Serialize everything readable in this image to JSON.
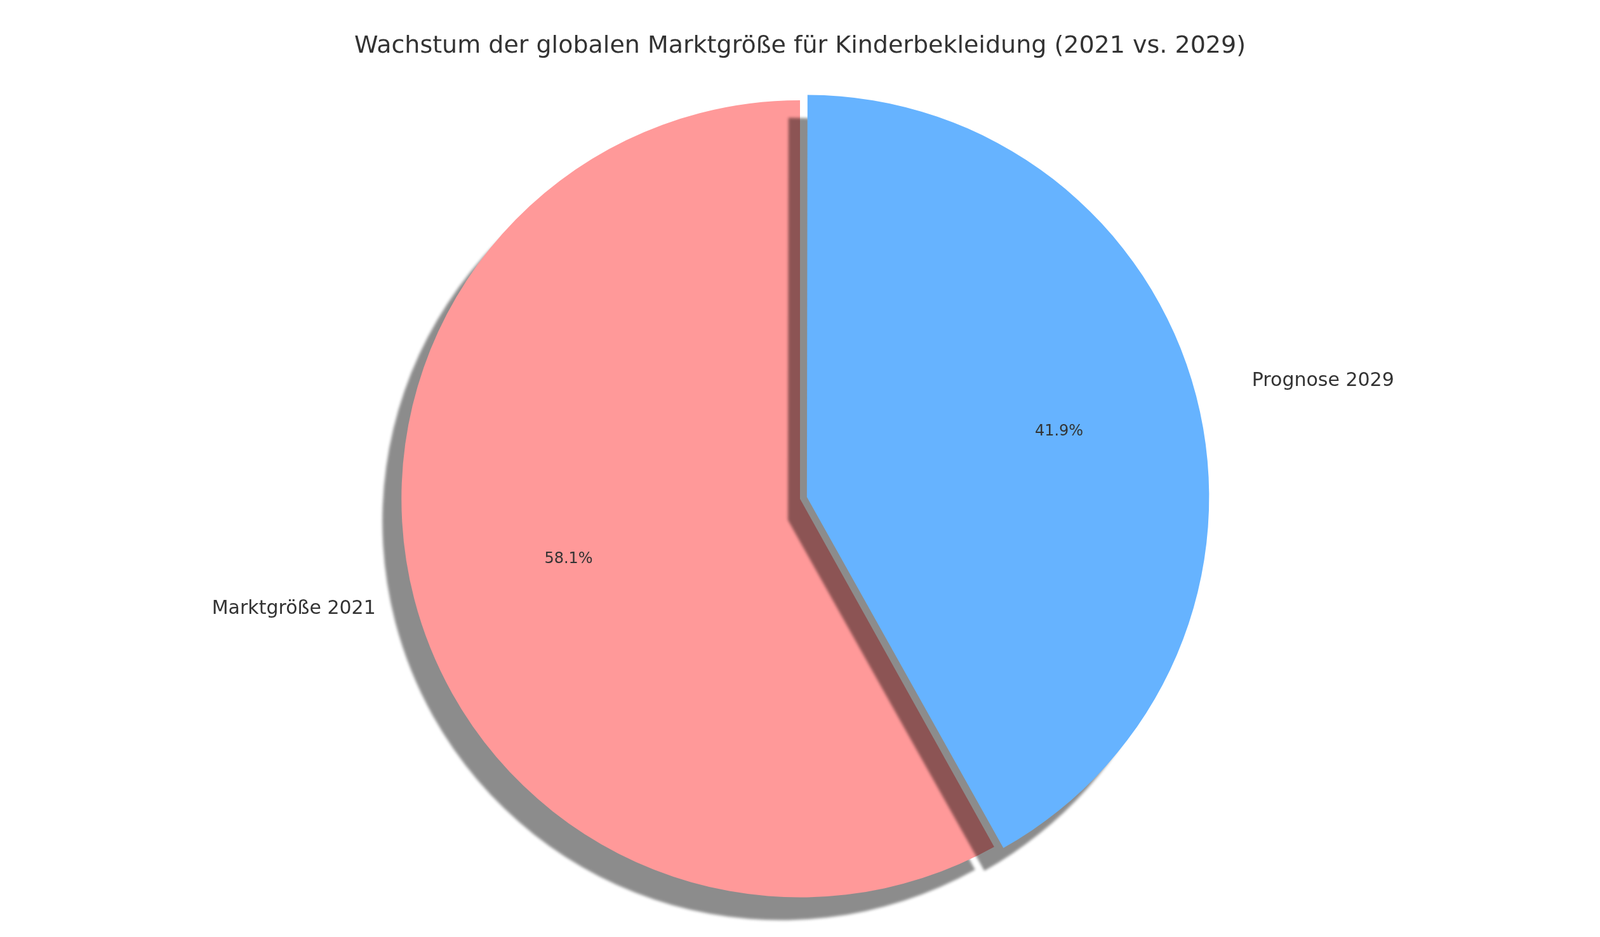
{
  "chart_data": {
    "type": "pie",
    "title": "Wachstum der globalen Marktgröße für Kinderbekleidung (2021 vs. 2029)",
    "categories": [
      "Marktgröße 2021",
      "Prognose 2029"
    ],
    "values": [
      58.1,
      41.9
    ],
    "value_labels": [
      "58.1%",
      "41.9%"
    ],
    "colors": [
      "#ff9999",
      "#66b3ff"
    ],
    "data_labels": true
  }
}
